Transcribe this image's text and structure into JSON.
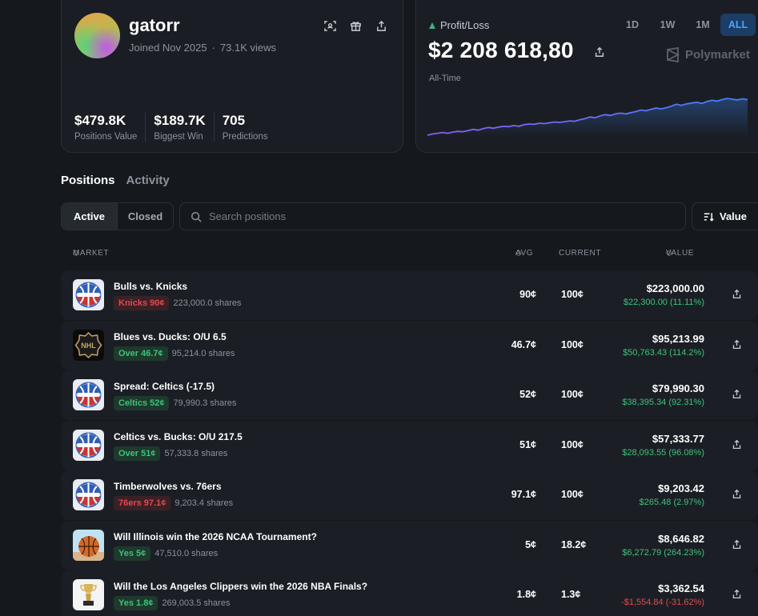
{
  "profile": {
    "username": "gatorr",
    "joined": "Joined Nov 2025",
    "views": "73.1K views",
    "stats": [
      {
        "value": "$479.8K",
        "label": "Positions Value"
      },
      {
        "value": "$189.7K",
        "label": "Biggest Win"
      },
      {
        "value": "705",
        "label": "Predictions"
      }
    ]
  },
  "pnl": {
    "title": "Profit/Loss",
    "amount": "$2 208 618,80",
    "period": "All-Time",
    "brand": "Polymarket",
    "timeframes": [
      "1D",
      "1W",
      "1M",
      "ALL"
    ],
    "active_timeframe": "ALL",
    "colors": {
      "line_start": "#8b5cf6",
      "line_end": "#3b82f6",
      "up": "#3fb27f"
    },
    "chart_data": {
      "type": "line",
      "title": "",
      "series": [
        {
          "name": "Profit/Loss",
          "values": [
            0.05,
            0.08,
            0.1,
            0.12,
            0.1,
            0.13,
            0.15,
            0.14,
            0.17,
            0.2,
            0.18,
            0.22,
            0.25,
            0.23,
            0.26,
            0.28,
            0.27,
            0.3,
            0.28,
            0.32,
            0.34,
            0.33,
            0.36,
            0.35,
            0.37,
            0.39,
            0.38,
            0.4,
            0.42,
            0.41,
            0.45,
            0.48,
            0.52,
            0.5,
            0.55,
            0.58,
            0.56,
            0.6,
            0.62,
            0.6,
            0.63,
            0.66,
            0.7,
            0.68,
            0.72,
            0.75,
            0.73,
            0.76,
            0.8,
            0.85,
            0.82,
            0.86,
            0.88,
            0.9,
            0.87,
            0.92,
            0.95,
            0.93,
            0.97,
            1.0,
            0.98,
            0.96,
            0.99,
            0.97
          ]
        }
      ]
    }
  },
  "tabs": {
    "positions": "Positions",
    "activity": "Activity"
  },
  "filter": {
    "active": "Active",
    "closed": "Closed"
  },
  "search": {
    "placeholder": "Search positions"
  },
  "sort": {
    "label": "Value"
  },
  "table": {
    "headers": {
      "market": "MARKET",
      "avg": "AVG",
      "current": "CURRENT",
      "value": "VALUE"
    },
    "rows": [
      {
        "title": "Bulls vs. Knicks",
        "badge": "Knicks 90¢",
        "badge_color": "red",
        "shares": "223,000.0 shares",
        "avg": "90¢",
        "current": "100¢",
        "value": "$223,000.00",
        "change": "$22,300.00 (11.11%)",
        "change_dir": "pos",
        "icon": "basketball-icon"
      },
      {
        "title": "Blues vs. Ducks: O/U 6.5",
        "badge": "Over 46.7¢",
        "badge_color": "green",
        "shares": "95,214.0 shares",
        "avg": "46.7¢",
        "current": "100¢",
        "value": "$95,213.99",
        "change": "$50,763.43 (114.2%)",
        "change_dir": "pos",
        "icon": "nhl-logo-icon"
      },
      {
        "title": "Spread: Celtics (-17.5)",
        "badge": "Celtics 52¢",
        "badge_color": "green",
        "shares": "79,990.3 shares",
        "avg": "52¢",
        "current": "100¢",
        "value": "$79,990.30",
        "change": "$38,395.34 (92.31%)",
        "change_dir": "pos",
        "icon": "basketball-icon"
      },
      {
        "title": "Celtics vs. Bucks: O/U 217.5",
        "badge": "Over 51¢",
        "badge_color": "green",
        "shares": "57,333.8 shares",
        "avg": "51¢",
        "current": "100¢",
        "value": "$57,333.77",
        "change": "$28,093.55 (96.08%)",
        "change_dir": "pos",
        "icon": "basketball-icon"
      },
      {
        "title": "Timberwolves vs. 76ers",
        "badge": "76ers 97.1¢",
        "badge_color": "red",
        "shares": "9,203.4 shares",
        "avg": "97.1¢",
        "current": "100¢",
        "value": "$9,203.42",
        "change": "$265.48 (2.97%)",
        "change_dir": "pos",
        "icon": "basketball-icon"
      },
      {
        "title": "Will Illinois win the 2026 NCAA Tournament?",
        "badge": "Yes 5¢",
        "badge_color": "green",
        "shares": "47,510.0 shares",
        "avg": "5¢",
        "current": "18.2¢",
        "value": "$8,646.82",
        "change": "$6,272.79 (264.23%)",
        "change_dir": "pos",
        "icon": "basketball-photo-icon"
      },
      {
        "title": "Will the Los Angeles Clippers win the 2026 NBA Finals?",
        "badge": "Yes 1.8¢",
        "badge_color": "green",
        "shares": "269,003.5 shares",
        "avg": "1.8¢",
        "current": "1.3¢",
        "value": "$3,362.54",
        "change": "-$1,554.84 (-31.62%)",
        "change_dir": "neg",
        "icon": "trophy-icon"
      }
    ]
  }
}
